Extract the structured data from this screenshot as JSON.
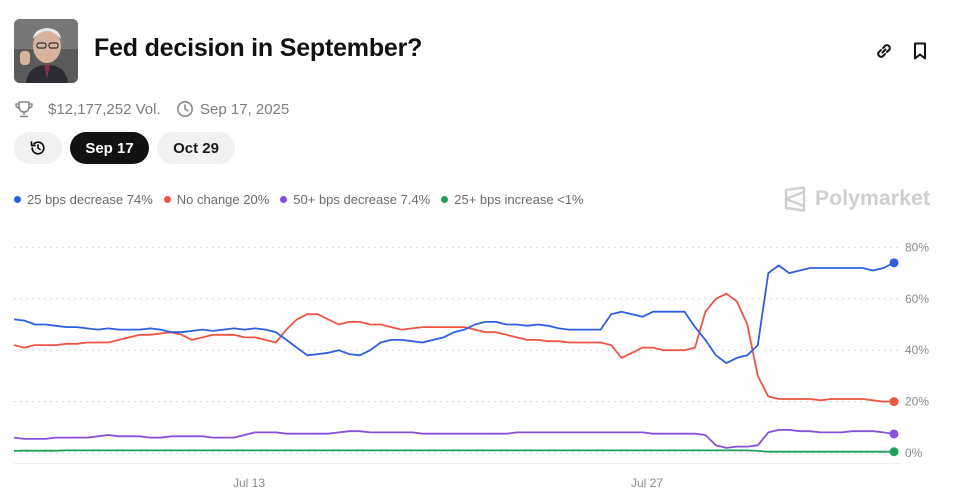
{
  "header": {
    "title": "Fed decision in September?",
    "volume": "$12,177,252 Vol.",
    "date": "Sep 17, 2025"
  },
  "tabs": [
    {
      "label": "Sep 17",
      "active": true
    },
    {
      "label": "Oct 29",
      "active": false
    }
  ],
  "icons": {
    "link": "link-icon",
    "bookmark": "bookmark-icon",
    "trophy": "trophy-icon",
    "clock": "clock-icon",
    "history": "history-icon"
  },
  "brand": "Polymarket",
  "chart_data": {
    "type": "line",
    "x_ticks": [
      "Jul 13",
      "Jul 27"
    ],
    "y_ticks": [
      "0%",
      "20%",
      "40%",
      "60%",
      "80%"
    ],
    "ylim": [
      0,
      85
    ],
    "grid": true,
    "legend_position": "top-left",
    "series": [
      {
        "name": "25 bps decrease",
        "legend": "25 bps decrease 74%",
        "color": "#2f5fe0",
        "values": [
          52,
          51.5,
          50,
          50,
          49.5,
          49,
          49,
          48.5,
          48,
          48.5,
          48,
          48,
          48,
          48.5,
          48,
          47,
          47,
          47.5,
          48,
          47.5,
          48,
          48.5,
          48,
          48.5,
          48,
          47,
          44,
          41,
          38,
          38.5,
          39,
          40,
          38.5,
          38,
          40,
          43,
          44,
          44,
          43.5,
          43,
          44,
          45,
          47,
          48,
          50,
          51,
          51,
          50,
          50,
          49.5,
          50,
          49.5,
          48.5,
          48,
          48,
          48,
          48,
          54,
          55,
          54,
          53,
          55,
          55,
          55,
          55,
          49,
          44,
          38,
          35,
          37,
          38,
          42,
          70,
          73,
          70,
          71,
          72,
          72,
          72,
          72,
          72,
          72,
          71,
          72,
          74
        ]
      },
      {
        "name": "No change",
        "legend": "No change 20%",
        "color": "#ee5545",
        "values": [
          42,
          41,
          42,
          42,
          42,
          42.5,
          42.5,
          43,
          43,
          43,
          44,
          45,
          46,
          46,
          46.5,
          47,
          46,
          44,
          45,
          46,
          46,
          46,
          45,
          45,
          44,
          43,
          48,
          52,
          54,
          54,
          52,
          50,
          51,
          51,
          50,
          50,
          49,
          48,
          48.5,
          49,
          49,
          49,
          49,
          49,
          48,
          47,
          47,
          46,
          45,
          44,
          44,
          43.5,
          43.5,
          43,
          43,
          43,
          43,
          42,
          37,
          39,
          41,
          41,
          40,
          40,
          40,
          41,
          55,
          60,
          62,
          59,
          50,
          30,
          22,
          21,
          21,
          21,
          21,
          20.5,
          21,
          21,
          21,
          21,
          20.5,
          20,
          20
        ]
      },
      {
        "name": "50+ bps decrease",
        "legend": "50+ bps decrease 7.4%",
        "color": "#8a4fd8",
        "values": [
          6,
          5.5,
          5.5,
          5.5,
          6,
          6,
          6,
          6,
          6.5,
          7,
          6.5,
          6.5,
          6.5,
          6,
          6,
          6.5,
          6.5,
          6.5,
          6.5,
          6,
          6,
          6,
          7,
          8,
          8,
          8,
          7.5,
          7.5,
          7.5,
          7.5,
          7.5,
          8,
          8.5,
          8.5,
          8,
          8,
          8,
          8,
          8,
          7.5,
          7.5,
          7.5,
          7.5,
          7.5,
          7.5,
          7.5,
          7.5,
          7.5,
          8,
          8,
          8,
          8,
          8,
          8,
          8,
          8,
          8,
          8,
          8,
          8,
          8,
          7.5,
          7.5,
          7.5,
          7.5,
          7.5,
          7,
          3,
          2,
          2.5,
          2.5,
          3,
          8,
          9,
          9,
          8.5,
          8.5,
          8,
          8,
          8,
          8.5,
          8.5,
          8.5,
          8,
          7.4
        ]
      },
      {
        "name": "25+ bps increase",
        "legend": "25+ bps increase <1%",
        "color": "#1ea05a",
        "values": [
          0.8,
          0.9,
          0.9,
          0.9,
          0.9,
          1,
          1,
          1,
          1,
          1,
          1,
          1,
          1,
          1,
          1,
          1,
          1,
          1,
          1,
          1,
          1,
          1,
          1,
          1,
          1,
          1,
          1,
          1,
          1,
          1,
          1,
          1,
          1,
          1,
          1,
          1,
          1,
          1,
          1,
          1,
          1,
          1,
          1,
          1,
          1,
          1,
          1,
          1,
          1,
          1,
          1,
          1,
          1,
          1,
          1,
          1,
          1,
          1,
          1,
          1,
          1,
          1,
          1,
          1,
          1,
          1,
          1,
          1,
          1,
          1,
          1,
          0.8,
          0.5,
          0.5,
          0.5,
          0.5,
          0.5,
          0.5,
          0.5,
          0.5,
          0.5,
          0.5,
          0.5,
          0.5,
          0.5
        ]
      }
    ]
  }
}
